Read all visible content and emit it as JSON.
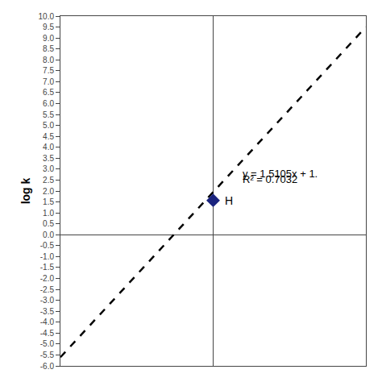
{
  "chart_data": {
    "type": "scatter",
    "ylabel": "log k",
    "xlim": [
      -5.0,
      5.0
    ],
    "ylim": [
      -6.0,
      10.0
    ],
    "yticks": [
      {
        "value": -6.0,
        "label": "-6.0"
      },
      -5.5,
      {
        "value": -5.0,
        "label": "-5.0"
      },
      -4.5,
      {
        "value": -4.0,
        "label": "-4.0"
      },
      -3.5,
      {
        "value": -3.0,
        "label": "-3.0"
      },
      -2.5,
      {
        "value": -2.0,
        "label": "-2.0"
      },
      -1.5,
      {
        "value": -1.0,
        "label": "-1.0"
      },
      -0.5,
      {
        "value": 0.0,
        "label": "0.0"
      },
      0.5,
      {
        "value": 1.0,
        "label": "1.0"
      },
      1.5,
      {
        "value": 2.0,
        "label": "2.0"
      },
      2.5,
      {
        "value": 3.0,
        "label": "3.0"
      },
      3.5,
      {
        "value": 4.0,
        "label": "4.0"
      },
      4.5,
      {
        "value": 5.0,
        "label": "5.0"
      },
      5.5,
      {
        "value": 6.0,
        "label": "6.0"
      },
      6.5,
      {
        "value": 7.0,
        "label": "7.0"
      },
      7.5,
      {
        "value": 8.0,
        "label": "8.0"
      },
      8.5,
      {
        "value": 9.0,
        "label": "9.0"
      },
      9.5,
      {
        "value": 10.0,
        "label": "10.0"
      }
    ],
    "grid": false,
    "tick_labels": "y",
    "series": [
      {
        "type": "line",
        "line_style": "dashed",
        "color": "#000000",
        "x": [
          -5.0,
          5.0
        ],
        "values": [
          -5.6025,
          9.5025
        ]
      },
      {
        "type": "scatter",
        "marker": "diamond",
        "color": "#1a237e",
        "x": [
          0.0
        ],
        "values": [
          1.57
        ]
      }
    ],
    "annotations": [
      {
        "text": "H",
        "x": 0.0,
        "y": 1.57
      },
      {
        "text": "y = 1.5105x + 1.",
        "x": 0.9,
        "y": 2.78
      },
      {
        "text": "R² = 0.7032",
        "x": 0.9,
        "y": 2.55
      }
    ]
  }
}
